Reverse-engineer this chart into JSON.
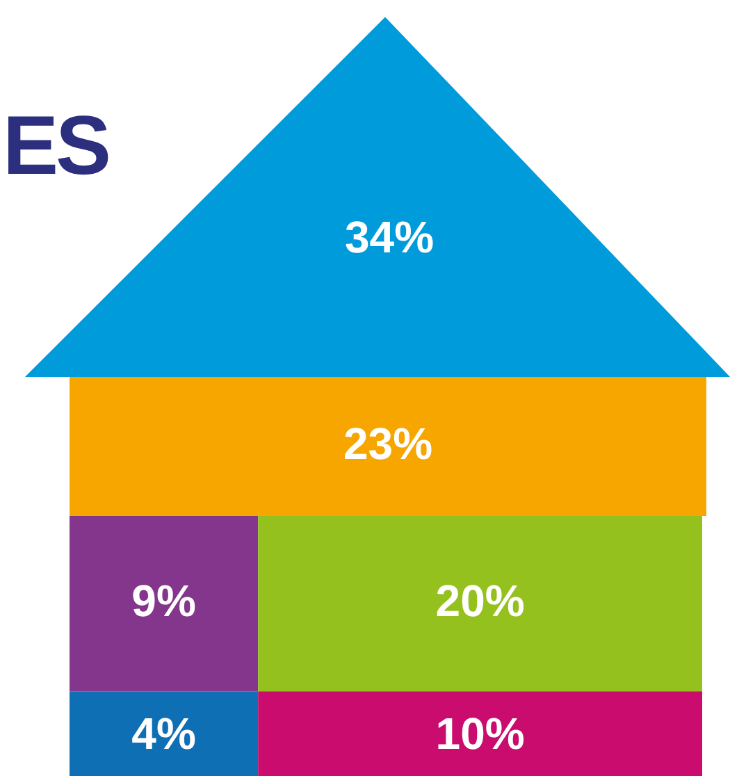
{
  "chart_data": {
    "type": "other",
    "title": "ES",
    "categories": [
      null,
      null,
      null,
      null,
      null,
      null
    ],
    "values": [
      34,
      23,
      9,
      20,
      4,
      10
    ],
    "colors": [
      "#009bdb",
      "#f7a600",
      "#84358c",
      "#95c11f",
      "#0f6fb4",
      "#c90c6e"
    ],
    "value_labels": [
      "34%",
      "23%",
      "9%",
      "20%",
      "4%",
      "10%"
    ]
  }
}
